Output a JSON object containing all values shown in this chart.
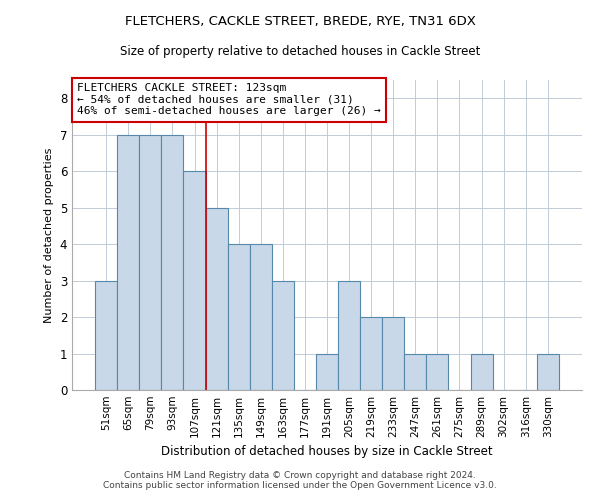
{
  "title": "FLETCHERS, CACKLE STREET, BREDE, RYE, TN31 6DX",
  "subtitle": "Size of property relative to detached houses in Cackle Street",
  "xlabel": "Distribution of detached houses by size in Cackle Street",
  "ylabel": "Number of detached properties",
  "categories": [
    "51sqm",
    "65sqm",
    "79sqm",
    "93sqm",
    "107sqm",
    "121sqm",
    "135sqm",
    "149sqm",
    "163sqm",
    "177sqm",
    "191sqm",
    "205sqm",
    "219sqm",
    "233sqm",
    "247sqm",
    "261sqm",
    "275sqm",
    "289sqm",
    "302sqm",
    "316sqm",
    "330sqm"
  ],
  "values": [
    3,
    7,
    7,
    7,
    6,
    5,
    4,
    4,
    3,
    0,
    1,
    3,
    2,
    2,
    1,
    1,
    0,
    1,
    0,
    0,
    1
  ],
  "highlight_index": 5,
  "bar_color": "#c8d8e8",
  "bar_edge_color": "#5588aa",
  "annotation_box_text": "FLETCHERS CACKLE STREET: 123sqm\n← 54% of detached houses are smaller (31)\n46% of semi-detached houses are larger (26) →",
  "annotation_box_color": "#ffffff",
  "annotation_box_edge_color": "#cc0000",
  "vline_color": "#cc0000",
  "vline_x": 4.5,
  "ylim": [
    0,
    8.5
  ],
  "yticks": [
    0,
    1,
    2,
    3,
    4,
    5,
    6,
    7,
    8
  ],
  "footer": "Contains HM Land Registry data © Crown copyright and database right 2024.\nContains public sector information licensed under the Open Government Licence v3.0.",
  "background_color": "#ffffff",
  "grid_color": "#c0ccd8"
}
